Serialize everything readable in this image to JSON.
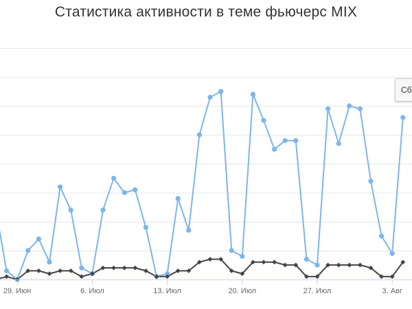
{
  "reset_label": "Сбросить",
  "chart_data": {
    "type": "line",
    "title": "Статистика активности в теме фьючерс MIX",
    "xlabel": "",
    "ylabel": "",
    "grid": true,
    "x_ticks": [
      {
        "label": "29. Июн",
        "index": 2
      },
      {
        "label": "6. Июл",
        "index": 9
      },
      {
        "label": "13. Июл",
        "index": 16
      },
      {
        "label": "20. Июл",
        "index": 23
      },
      {
        "label": "27. Июл",
        "index": 30
      },
      {
        "label": "3. Авг",
        "index": 37
      }
    ],
    "series": [
      {
        "color": "#7cb5ec",
        "values": [
          24,
          3,
          0,
          10,
          14,
          6,
          32,
          24,
          4,
          2,
          24,
          35,
          30,
          31,
          18,
          1,
          2,
          28,
          17,
          50,
          63,
          65,
          10,
          8,
          64,
          55,
          45,
          48,
          48,
          7,
          5,
          59,
          47,
          60,
          59,
          34,
          15,
          9,
          56
        ]
      },
      {
        "color": "#434348",
        "values": [
          0,
          1,
          0,
          3,
          3,
          2,
          3,
          3,
          1,
          2,
          4,
          4,
          4,
          4,
          3,
          1,
          1,
          3,
          3,
          6,
          7,
          7,
          3,
          2,
          6,
          6,
          6,
          5,
          5,
          1,
          1,
          5,
          5,
          5,
          5,
          4,
          1,
          1,
          6
        ]
      }
    ],
    "ylim": [
      0,
      80
    ]
  }
}
